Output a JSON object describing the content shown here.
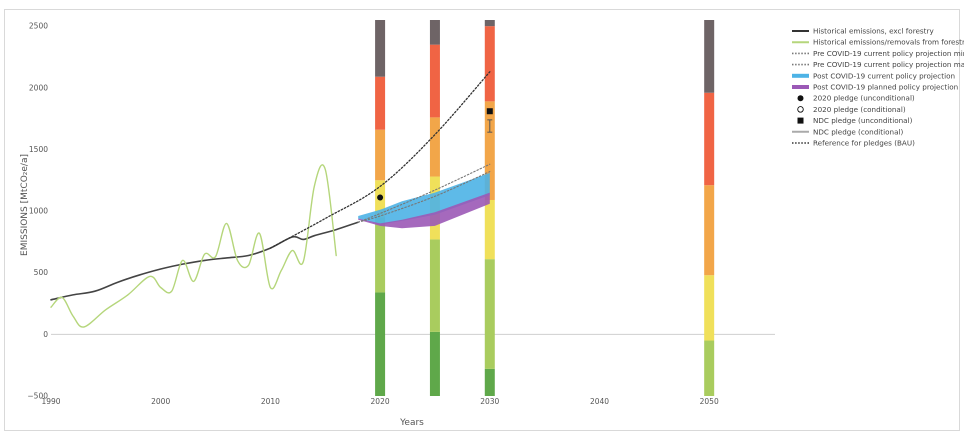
{
  "chart_data": {
    "type": "line",
    "xlabel": "Years",
    "ylabel": "EMISSIONS [MtCO₂e/a]",
    "xlim": [
      1990,
      2056
    ],
    "ylim": [
      -500,
      2550
    ],
    "x_ticks": [
      "1990",
      "2000",
      "2010",
      "2020",
      "2030",
      "2040",
      "2050"
    ],
    "y_ticks": [
      "2500",
      "2000",
      "1500",
      "1000",
      "500",
      "0",
      "−500"
    ],
    "legend_placement": "right",
    "legend": [
      {
        "label": "Historical emissions, excl forestry",
        "style": "solid",
        "color": "#333333"
      },
      {
        "label": "Historical emissions/removals from forestry",
        "style": "solid",
        "color": "#b5d67b"
      },
      {
        "label": "Pre COVID-19 current policy projection min",
        "style": "dotted",
        "color": "#777777"
      },
      {
        "label": "Pre COVID-19 current policy projection max",
        "style": "dotted",
        "color": "#777777"
      },
      {
        "label": "Post COVID-19 current policy projection",
        "style": "band",
        "color": "#4db3e6"
      },
      {
        "label": "Post COVID-19 planned policy projection",
        "style": "band",
        "color": "#9b59b6"
      },
      {
        "label": "2020 pledge (unconditional)",
        "style": "dot",
        "color": "#111111"
      },
      {
        "label": "2020 pledge (conditional)",
        "style": "circle",
        "color": "#111111"
      },
      {
        "label": "NDC pledge (unconditional)",
        "style": "square",
        "color": "#111111"
      },
      {
        "label": "NDC pledge (conditional)",
        "style": "solid",
        "color": "#aaaaaa"
      },
      {
        "label": "Reference for pledges (BAU)",
        "style": "dotted",
        "color": "#333333"
      }
    ],
    "series": [
      {
        "name": "Historical emissions, excl forestry",
        "x": [
          1990,
          1992,
          1994,
          1996,
          1998,
          2000,
          2002,
          2004,
          2006,
          2008,
          2010,
          2012,
          2013,
          2014,
          2016,
          2018
        ],
        "y": [
          280,
          320,
          350,
          420,
          480,
          530,
          570,
          600,
          620,
          640,
          700,
          790,
          770,
          800,
          850,
          910
        ]
      },
      {
        "name": "Historical emissions/removals from forestry",
        "x": [
          1990,
          1991,
          1992,
          1993,
          1995,
          1997,
          1999,
          2000,
          2001,
          2002,
          2003,
          2004,
          2005,
          2006,
          2007,
          2008,
          2009,
          2010,
          2011,
          2012,
          2013,
          2014,
          2015,
          2016
        ],
        "y": [
          220,
          300,
          150,
          60,
          200,
          320,
          470,
          380,
          350,
          600,
          430,
          650,
          630,
          900,
          600,
          560,
          820,
          380,
          520,
          680,
          590,
          1200,
          1340,
          640
        ]
      },
      {
        "name": "Reference for pledges (BAU)",
        "x": [
          2010,
          2015,
          2020,
          2025,
          2030
        ],
        "y": [
          700,
          940,
          1200,
          1620,
          2130
        ]
      },
      {
        "name": "Pre COVID-19 current policy projection max",
        "x": [
          2018,
          2020,
          2025,
          2030
        ],
        "y": [
          910,
          980,
          1170,
          1380
        ]
      },
      {
        "name": "Pre COVID-19 current policy projection min",
        "x": [
          2018,
          2020,
          2025,
          2030
        ],
        "y": [
          910,
          960,
          1120,
          1320
        ]
      }
    ],
    "bands": [
      {
        "name": "Post COVID-19 current policy projection",
        "x": [
          2018,
          2020,
          2022,
          2025,
          2030
        ],
        "upper": [
          960,
          1010,
          1080,
          1150,
          1310
        ],
        "lower": [
          940,
          890,
          920,
          970,
          1130
        ]
      },
      {
        "name": "Post COVID-19 planned policy projection",
        "x": [
          2018,
          2020,
          2022,
          2025,
          2030
        ],
        "upper": [
          940,
          900,
          930,
          990,
          1150
        ],
        "lower": [
          930,
          880,
          860,
          880,
          1060
        ]
      }
    ],
    "points": [
      {
        "name": "2020 pledge (unconditional)",
        "x": 2020,
        "y": 1110
      },
      {
        "name": "NDC pledge (unconditional)",
        "x": 2030,
        "y": 1810
      }
    ],
    "error_bars": [
      {
        "name": "NDC pledge (conditional)",
        "x": 2030,
        "low": 1640,
        "high": 1740
      }
    ],
    "rating_bars": [
      {
        "year": 2020,
        "segments": [
          {
            "from": -500,
            "to": 340,
            "color": "#5fa84a"
          },
          {
            "from": 340,
            "to": 950,
            "color": "#a9cc5e"
          },
          {
            "from": 950,
            "to": 1250,
            "color": "#f0e05a"
          },
          {
            "from": 1250,
            "to": 1660,
            "color": "#f2a649"
          },
          {
            "from": 1660,
            "to": 2090,
            "color": "#f06444"
          },
          {
            "from": 2090,
            "to": 2550,
            "color": "#6e6466"
          }
        ]
      },
      {
        "year": 2025,
        "segments": [
          {
            "from": -500,
            "to": 20,
            "color": "#5fa84a"
          },
          {
            "from": 20,
            "to": 770,
            "color": "#a9cc5e"
          },
          {
            "from": 770,
            "to": 1280,
            "color": "#f0e05a"
          },
          {
            "from": 1280,
            "to": 1760,
            "color": "#f2a649"
          },
          {
            "from": 1760,
            "to": 2350,
            "color": "#f06444"
          },
          {
            "from": 2350,
            "to": 2550,
            "color": "#6e6466"
          }
        ]
      },
      {
        "year": 2030,
        "segments": [
          {
            "from": -500,
            "to": -280,
            "color": "#5fa84a"
          },
          {
            "from": -280,
            "to": 610,
            "color": "#a9cc5e"
          },
          {
            "from": 610,
            "to": 1090,
            "color": "#f0e05a"
          },
          {
            "from": 1090,
            "to": 1890,
            "color": "#f2a649"
          },
          {
            "from": 1890,
            "to": 2500,
            "color": "#f06444"
          },
          {
            "from": 2500,
            "to": 2550,
            "color": "#6e6466"
          }
        ]
      },
      {
        "year": 2050,
        "segments": [
          {
            "from": -500,
            "to": -50,
            "color": "#a9cc5e"
          },
          {
            "from": -50,
            "to": 480,
            "color": "#f0e05a"
          },
          {
            "from": 480,
            "to": 1210,
            "color": "#f2a649"
          },
          {
            "from": 1210,
            "to": 1960,
            "color": "#f06444"
          },
          {
            "from": 1960,
            "to": 2550,
            "color": "#6e6466"
          }
        ]
      }
    ]
  }
}
